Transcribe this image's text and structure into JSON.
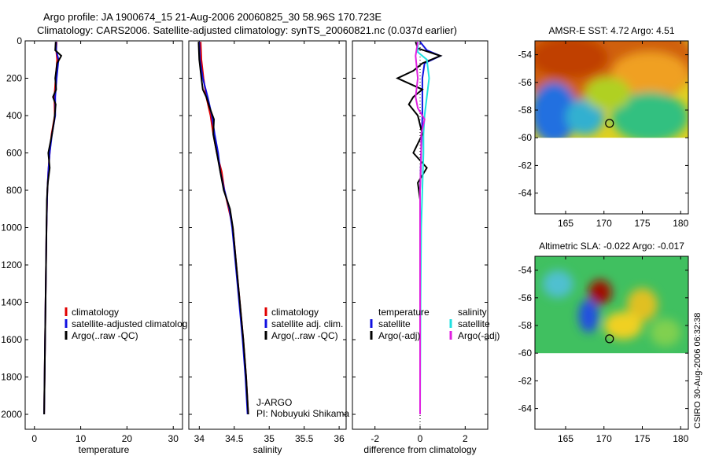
{
  "header": {
    "line1": "Argo profile: JA 1900674_15 21-Aug-2006 20060825_30 58.96S 170.723E",
    "line2": "Climatology: CARS2006. Satellite-adjusted climatology: synTS_20060821.nc (0.037d earlier)"
  },
  "side_stamp": "CSIRO 30-Aug-2006 06:32:38",
  "colors": {
    "climatology": "#e00000",
    "satellite": "#1010e0",
    "argo": "#000000",
    "argo_adj_sal": "#e020e0",
    "satellite_sal": "#20e0e0"
  },
  "chart_data": [
    {
      "id": "temperature",
      "type": "line",
      "xlabel": "temperature",
      "ylabel": "",
      "xlim": [
        -2,
        32
      ],
      "ylim": [
        2080,
        0
      ],
      "xticks": [
        0,
        10,
        20,
        30
      ],
      "xtick_labels": [
        "0",
        "10",
        "20",
        "30"
      ],
      "yticks": [
        0,
        200,
        400,
        600,
        800,
        1000,
        1200,
        1400,
        1600,
        1800,
        2000
      ],
      "ytick_labels": [
        "0",
        "200",
        "400",
        "600",
        "800",
        "1000",
        "1200",
        "1400",
        "1600",
        "1800",
        "2000"
      ],
      "legend": [
        {
          "label": "climatology",
          "color": "#e00000"
        },
        {
          "label": "satellite-adjusted climatolog",
          "color": "#1010e0"
        },
        {
          "label": "Argo(..raw -QC)",
          "color": "#000000"
        }
      ],
      "series": [
        {
          "name": "climatology",
          "color": "#e00000",
          "points": [
            [
              4.8,
              5
            ],
            [
              4.7,
              50
            ],
            [
              4.9,
              100
            ],
            [
              4.6,
              200
            ],
            [
              4.3,
              300
            ],
            [
              4.4,
              400
            ],
            [
              3.7,
              500
            ],
            [
              3.3,
              600
            ],
            [
              3.0,
              700
            ],
            [
              2.8,
              800
            ],
            [
              2.6,
              1000
            ],
            [
              2.5,
              1200
            ],
            [
              2.4,
              1400
            ],
            [
              2.3,
              1600
            ],
            [
              2.2,
              1800
            ],
            [
              2.1,
              2000
            ]
          ]
        },
        {
          "name": "satellite",
          "color": "#1010e0",
          "points": [
            [
              4.7,
              5
            ],
            [
              4.7,
              50
            ],
            [
              5.2,
              100
            ],
            [
              4.8,
              200
            ],
            [
              4.5,
              300
            ],
            [
              4.5,
              400
            ],
            [
              3.8,
              500
            ],
            [
              3.3,
              600
            ],
            [
              3.0,
              700
            ],
            [
              2.8,
              800
            ],
            [
              2.6,
              1000
            ],
            [
              2.5,
              1200
            ],
            [
              2.4,
              1400
            ],
            [
              2.3,
              1600
            ],
            [
              2.2,
              1800
            ],
            [
              2.1,
              2000
            ]
          ]
        },
        {
          "name": "Argo",
          "color": "#000000",
          "points": [
            [
              4.6,
              5
            ],
            [
              4.5,
              50
            ],
            [
              5.8,
              80
            ],
            [
              4.9,
              120
            ],
            [
              4.5,
              200
            ],
            [
              4.7,
              260
            ],
            [
              4.0,
              300
            ],
            [
              4.6,
              340
            ],
            [
              4.3,
              420
            ],
            [
              3.8,
              500
            ],
            [
              3.0,
              600
            ],
            [
              3.3,
              680
            ],
            [
              2.9,
              760
            ],
            [
              2.7,
              850
            ],
            [
              2.6,
              1000
            ],
            [
              2.5,
              1200
            ],
            [
              2.4,
              1400
            ],
            [
              2.3,
              1600
            ],
            [
              2.2,
              1800
            ],
            [
              2.1,
              2000
            ]
          ]
        }
      ]
    },
    {
      "id": "salinity",
      "type": "line",
      "xlabel": "salinity",
      "ylabel": "",
      "xlim": [
        33.85,
        36.1
      ],
      "ylim": [
        2080,
        0
      ],
      "xticks": [
        34,
        34.5,
        35,
        35.5,
        36
      ],
      "xtick_labels": [
        "34",
        "34.5",
        "35",
        "35.5",
        "36"
      ],
      "legend": [
        {
          "label": "climatology",
          "color": "#e00000"
        },
        {
          "label": "satellite adj. clim.",
          "color": "#1010e0"
        },
        {
          "label": "Argo(..raw -QC)",
          "color": "#000000"
        }
      ],
      "annotations": [
        "J-ARGO",
        "PI: Nobuyuki Shikama"
      ],
      "series": [
        {
          "name": "climatology",
          "color": "#e00000",
          "points": [
            [
              34.02,
              5
            ],
            [
              34.03,
              100
            ],
            [
              34.06,
              200
            ],
            [
              34.1,
              300
            ],
            [
              34.16,
              400
            ],
            [
              34.2,
              500
            ],
            [
              34.25,
              600
            ],
            [
              34.32,
              700
            ],
            [
              34.36,
              800
            ],
            [
              34.42,
              900
            ],
            [
              34.48,
              1000
            ],
            [
              34.53,
              1200
            ],
            [
              34.58,
              1400
            ],
            [
              34.63,
              1600
            ],
            [
              34.67,
              1800
            ],
            [
              34.7,
              2000
            ]
          ]
        },
        {
          "name": "satellite",
          "color": "#1010e0",
          "points": [
            [
              34.0,
              5
            ],
            [
              34.01,
              100
            ],
            [
              34.05,
              200
            ],
            [
              34.12,
              300
            ],
            [
              34.18,
              400
            ],
            [
              34.22,
              500
            ],
            [
              34.27,
              600
            ],
            [
              34.3,
              700
            ],
            [
              34.36,
              800
            ],
            [
              34.43,
              900
            ],
            [
              34.47,
              1000
            ],
            [
              34.52,
              1200
            ],
            [
              34.57,
              1400
            ],
            [
              34.62,
              1600
            ],
            [
              34.66,
              1800
            ],
            [
              34.69,
              2000
            ]
          ]
        },
        {
          "name": "Argo",
          "color": "#000000",
          "points": [
            [
              33.99,
              5
            ],
            [
              34.0,
              100
            ],
            [
              34.03,
              200
            ],
            [
              34.05,
              260
            ],
            [
              34.1,
              300
            ],
            [
              34.15,
              360
            ],
            [
              34.21,
              420
            ],
            [
              34.2,
              500
            ],
            [
              34.25,
              600
            ],
            [
              34.3,
              700
            ],
            [
              34.35,
              800
            ],
            [
              34.44,
              900
            ],
            [
              34.48,
              1000
            ],
            [
              34.53,
              1200
            ],
            [
              34.58,
              1400
            ],
            [
              34.63,
              1600
            ],
            [
              34.67,
              1800
            ],
            [
              34.7,
              2000
            ]
          ]
        }
      ]
    },
    {
      "id": "difference",
      "type": "line",
      "xlabel": "difference from climatology",
      "ylabel": "",
      "xlim": [
        -3,
        3
      ],
      "ylim": [
        2080,
        0
      ],
      "xticks": [
        -2,
        0,
        2
      ],
      "xtick_labels": [
        "-2",
        "0",
        "2"
      ],
      "legend_groups": [
        {
          "title": "temperature",
          "items": [
            {
              "label": "satellite",
              "color": "#1010e0"
            },
            {
              "label": "Argo(-adj)",
              "color": "#000000"
            }
          ]
        },
        {
          "title": "salinity",
          "items": [
            {
              "label": "satellite",
              "color": "#20e0e0"
            },
            {
              "label": "Argo(-adj)",
              "color": "#e020e0"
            }
          ]
        }
      ],
      "series": [
        {
          "name": "temperature satellite",
          "color": "#1010e0",
          "points": [
            [
              0,
              5
            ],
            [
              0.3,
              50
            ],
            [
              0.9,
              80
            ],
            [
              0.2,
              120
            ],
            [
              0.1,
              200
            ],
            [
              0.1,
              300
            ],
            [
              0.1,
              400
            ],
            [
              0.05,
              600
            ],
            [
              0,
              800
            ],
            [
              0,
              1000
            ],
            [
              0,
              1400
            ],
            [
              0,
              2000
            ]
          ]
        },
        {
          "name": "temperature Argo(-adj)",
          "color": "#000000",
          "points": [
            [
              -0.2,
              5
            ],
            [
              -0.1,
              40
            ],
            [
              0.9,
              80
            ],
            [
              0.1,
              120
            ],
            [
              -0.3,
              160
            ],
            [
              -1.0,
              200
            ],
            [
              0.1,
              260
            ],
            [
              -0.3,
              300
            ],
            [
              -0.5,
              340
            ],
            [
              -0.1,
              400
            ],
            [
              0.1,
              500
            ],
            [
              -0.3,
              600
            ],
            [
              0.3,
              680
            ],
            [
              -0.1,
              760
            ],
            [
              0,
              850
            ],
            [
              0,
              1000
            ],
            [
              0,
              1400
            ],
            [
              0,
              2000
            ]
          ]
        },
        {
          "name": "salinity satellite",
          "color": "#20e0e0",
          "points": [
            [
              -0.1,
              5
            ],
            [
              -0.1,
              60
            ],
            [
              0.3,
              100
            ],
            [
              0.4,
              200
            ],
            [
              0.3,
              300
            ],
            [
              0.2,
              400
            ],
            [
              0.15,
              500
            ],
            [
              0.15,
              600
            ],
            [
              0.1,
              800
            ],
            [
              0.05,
              1000
            ],
            [
              0.02,
              1400
            ],
            [
              0,
              2000
            ]
          ]
        },
        {
          "name": "salinity Argo(-adj)",
          "color": "#e020e0",
          "points": [
            [
              -0.1,
              5
            ],
            [
              -0.2,
              80
            ],
            [
              -0.1,
              200
            ],
            [
              -0.2,
              300
            ],
            [
              -0.1,
              360
            ],
            [
              0.2,
              420
            ],
            [
              0.05,
              500
            ],
            [
              0.05,
              600
            ],
            [
              0,
              800
            ],
            [
              0,
              1000
            ],
            [
              0,
              1400
            ],
            [
              0,
              2000
            ]
          ]
        }
      ]
    },
    {
      "id": "sst_map",
      "type": "heatmap",
      "title": "AMSR-E SST: 4.72  Argo: 4.51",
      "xlim": [
        161,
        181
      ],
      "ylim": [
        -65.5,
        -53
      ],
      "data_lat_range": [
        -60,
        -53
      ],
      "xticks": [
        165,
        170,
        175,
        180
      ],
      "xtick_labels": [
        "165",
        "170",
        "175",
        "180"
      ],
      "yticks": [
        -54,
        -56,
        -58,
        -60,
        -62,
        -64
      ],
      "ytick_labels": [
        "-54",
        "-56",
        "-58",
        "-60",
        "-62",
        "-64"
      ],
      "marker": {
        "lon": 170.723,
        "lat": -58.96
      },
      "blobs": [
        {
          "lon": 170,
          "lat": -54.5,
          "rx": 12,
          "ry": 3.5,
          "color": "#d06010"
        },
        {
          "lon": 165.5,
          "lat": -54.2,
          "rx": 5,
          "ry": 1.5,
          "color": "#c04000"
        },
        {
          "lon": 176,
          "lat": -55.4,
          "rx": 5,
          "ry": 1.6,
          "color": "#f0a020"
        },
        {
          "lon": 163.5,
          "lat": -58.2,
          "rx": 3,
          "ry": 2.2,
          "color": "#2070e0"
        },
        {
          "lon": 167.5,
          "lat": -58.5,
          "rx": 2.5,
          "ry": 1.3,
          "color": "#30b0d0"
        },
        {
          "lon": 176,
          "lat": -58.5,
          "rx": 5,
          "ry": 1.8,
          "color": "#30c080"
        },
        {
          "lon": 170.5,
          "lat": -56.8,
          "rx": 3,
          "ry": 1.2,
          "color": "#b0d020"
        }
      ],
      "background_color": "#e0d020"
    },
    {
      "id": "sla_map",
      "type": "heatmap",
      "title": "Altimetric SLA: -0.022  Argo: -0.017",
      "xlim": [
        161,
        181
      ],
      "ylim": [
        -65.5,
        -53
      ],
      "data_lat_range": [
        -60,
        -53
      ],
      "xticks": [
        165,
        170,
        175,
        180
      ],
      "xtick_labels": [
        "165",
        "170",
        "175",
        "180"
      ],
      "yticks": [
        -54,
        -56,
        -58,
        -60,
        -62,
        -64
      ],
      "ytick_labels": [
        "-54",
        "-56",
        "-58",
        "-60",
        "-62",
        "-64"
      ],
      "marker": {
        "lon": 170.723,
        "lat": -58.96
      },
      "blobs": [
        {
          "lon": 169.5,
          "lat": -55.6,
          "rx": 1.5,
          "ry": 0.9,
          "color": "#a01000"
        },
        {
          "lon": 168,
          "lat": -57.3,
          "rx": 1.3,
          "ry": 1.2,
          "color": "#2050e0"
        },
        {
          "lon": 164,
          "lat": -55,
          "rx": 2,
          "ry": 1,
          "color": "#50c0d0"
        },
        {
          "lon": 175,
          "lat": -56.5,
          "rx": 2,
          "ry": 1.2,
          "color": "#e0c020"
        },
        {
          "lon": 172.5,
          "lat": -58,
          "rx": 2.5,
          "ry": 1,
          "color": "#f0d020"
        },
        {
          "lon": 178,
          "lat": -58.5,
          "rx": 2,
          "ry": 1,
          "color": "#80d050"
        }
      ],
      "background_color": "#40c060"
    }
  ]
}
